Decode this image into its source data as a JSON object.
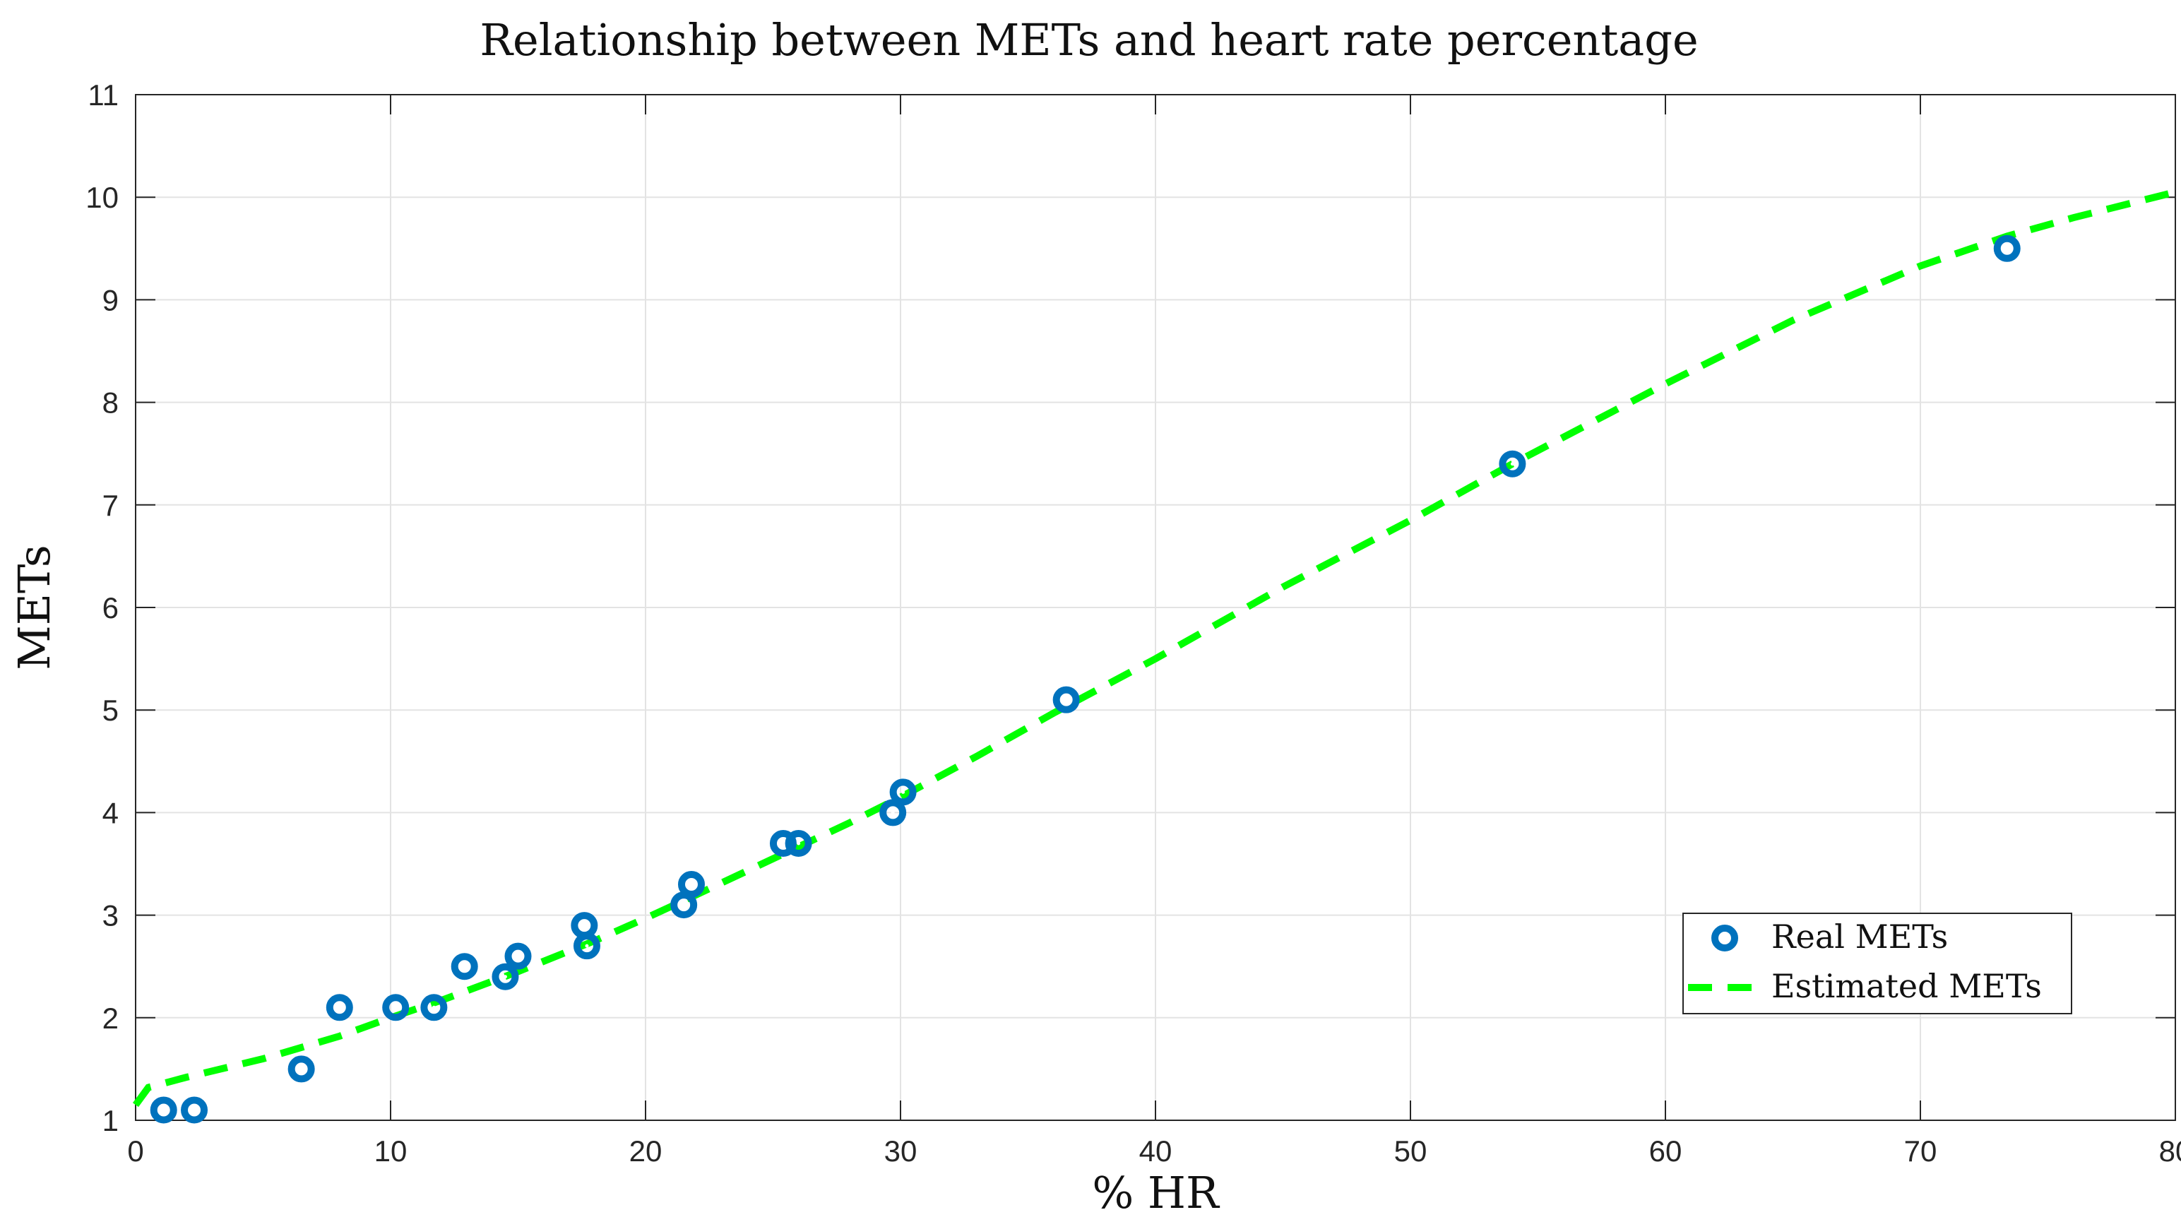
{
  "chart_data": {
    "type": "scatter",
    "title": "Relationship between METs and heart rate percentage",
    "xlabel": "% HR",
    "ylabel": "METs",
    "xlim": [
      0,
      80
    ],
    "ylim": [
      1,
      11
    ],
    "xticks": [
      0,
      10,
      20,
      30,
      40,
      50,
      60,
      70,
      80
    ],
    "yticks": [
      1,
      2,
      3,
      4,
      5,
      6,
      7,
      8,
      9,
      10,
      11
    ],
    "grid": true,
    "legend_position": "bottom-right",
    "series": [
      {
        "name": "Real METs",
        "kind": "scatter",
        "color": "#0072BD",
        "points": [
          {
            "x": 1.1,
            "y": 1.1
          },
          {
            "x": 2.3,
            "y": 1.1
          },
          {
            "x": 6.5,
            "y": 1.5
          },
          {
            "x": 8.0,
            "y": 2.1
          },
          {
            "x": 10.2,
            "y": 2.1
          },
          {
            "x": 11.7,
            "y": 2.1
          },
          {
            "x": 12.9,
            "y": 2.5
          },
          {
            "x": 14.5,
            "y": 2.4
          },
          {
            "x": 15.0,
            "y": 2.6
          },
          {
            "x": 17.6,
            "y": 2.9
          },
          {
            "x": 17.7,
            "y": 2.7
          },
          {
            "x": 21.5,
            "y": 3.1
          },
          {
            "x": 21.8,
            "y": 3.3
          },
          {
            "x": 25.4,
            "y": 3.7
          },
          {
            "x": 26.0,
            "y": 3.7
          },
          {
            "x": 29.7,
            "y": 4.0
          },
          {
            "x": 30.1,
            "y": 4.2
          },
          {
            "x": 36.5,
            "y": 5.1
          },
          {
            "x": 54.0,
            "y": 7.4
          },
          {
            "x": 73.4,
            "y": 9.5
          }
        ]
      },
      {
        "name": "Estimated METs",
        "kind": "line",
        "style": "dashed",
        "color": "#00FF00",
        "points": [
          {
            "x": 0,
            "y": 1.15
          },
          {
            "x": 0.5,
            "y": 1.32
          },
          {
            "x": 2,
            "y": 1.42
          },
          {
            "x": 5,
            "y": 1.6
          },
          {
            "x": 8,
            "y": 1.82
          },
          {
            "x": 10,
            "y": 2.0
          },
          {
            "x": 12,
            "y": 2.17
          },
          {
            "x": 15,
            "y": 2.45
          },
          {
            "x": 18,
            "y": 2.75
          },
          {
            "x": 20,
            "y": 2.97
          },
          {
            "x": 22,
            "y": 3.2
          },
          {
            "x": 25,
            "y": 3.55
          },
          {
            "x": 28,
            "y": 3.9
          },
          {
            "x": 30,
            "y": 4.15
          },
          {
            "x": 33,
            "y": 4.55
          },
          {
            "x": 36,
            "y": 4.97
          },
          {
            "x": 40,
            "y": 5.5
          },
          {
            "x": 45,
            "y": 6.2
          },
          {
            "x": 50,
            "y": 6.85
          },
          {
            "x": 54,
            "y": 7.4
          },
          {
            "x": 60,
            "y": 8.18
          },
          {
            "x": 65,
            "y": 8.8
          },
          {
            "x": 70,
            "y": 9.33
          },
          {
            "x": 73.4,
            "y": 9.62
          },
          {
            "x": 76,
            "y": 9.8
          },
          {
            "x": 80,
            "y": 10.05
          }
        ]
      }
    ]
  }
}
